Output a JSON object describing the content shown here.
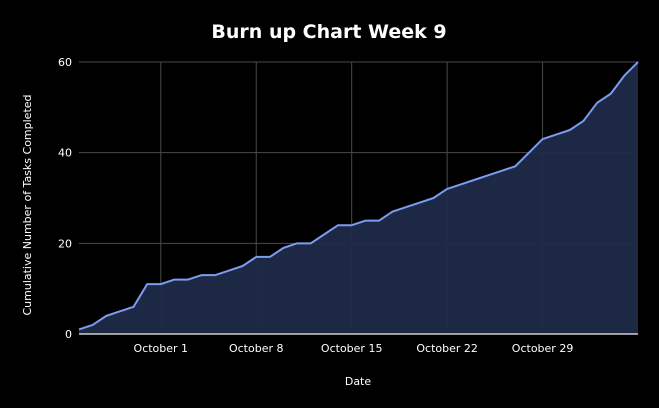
{
  "chart_data": {
    "type": "area",
    "title": "Burn up Chart Week 9",
    "xlabel": "Date",
    "ylabel": "Cumulative Number of Tasks Completed",
    "ylim": [
      0,
      60
    ],
    "y_ticks": [
      0,
      20,
      40,
      60
    ],
    "x_ticks": [
      {
        "day": 1,
        "label": "October 1"
      },
      {
        "day": 8,
        "label": "October 8"
      },
      {
        "day": 15,
        "label": "October 15"
      },
      {
        "day": 22,
        "label": "October 22"
      },
      {
        "day": 29,
        "label": "October 29"
      }
    ],
    "xlim": [
      -5,
      36
    ],
    "grid": true,
    "colors": {
      "line": "#7b9cf0",
      "fill": "#1e2a48",
      "grid": "#4a4a4a",
      "axis": "#cfcfcf"
    },
    "x": [
      -5,
      -4,
      -3,
      -2,
      -1,
      0,
      1,
      2,
      3,
      4,
      5,
      6,
      7,
      8,
      9,
      10,
      11,
      12,
      13,
      14,
      15,
      16,
      17,
      18,
      19,
      20,
      21,
      22,
      23,
      24,
      25,
      26,
      27,
      28,
      29,
      30,
      31,
      32,
      33,
      34,
      35,
      36
    ],
    "values": [
      1,
      2,
      4,
      5,
      6,
      11,
      11,
      12,
      12,
      13,
      13,
      14,
      15,
      17,
      17,
      19,
      20,
      20,
      22,
      24,
      24,
      25,
      25,
      27,
      28,
      29,
      30,
      32,
      33,
      34,
      35,
      36,
      37,
      40,
      43,
      44,
      45,
      47,
      51,
      53,
      57,
      60
    ]
  }
}
